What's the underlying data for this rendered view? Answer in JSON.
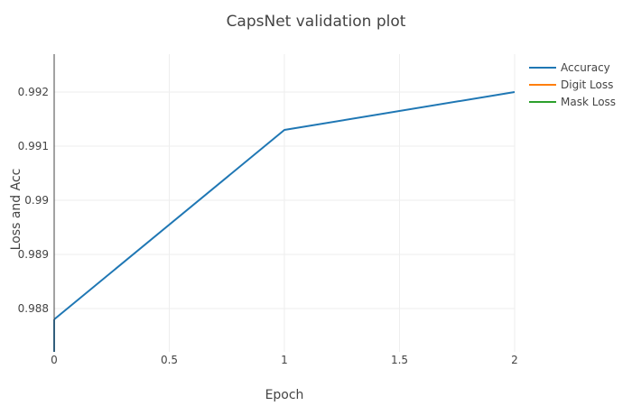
{
  "chart_data": {
    "type": "line",
    "title": "CapsNet validation plot",
    "xlabel": "Epoch",
    "ylabel": "Loss and Acc",
    "xlim": [
      0,
      2
    ],
    "ylim": [
      0.9872,
      0.9927
    ],
    "xticks": [
      0,
      0.5,
      1,
      1.5,
      2
    ],
    "xtick_labels": [
      "0",
      "0.5",
      "1",
      "1.5",
      "2"
    ],
    "yticks": [
      0.988,
      0.989,
      0.99,
      0.991,
      0.992
    ],
    "ytick_labels": [
      "0.988",
      "0.989",
      "0.99",
      "0.991",
      "0.992"
    ],
    "grid": true,
    "legend_position": "top-right",
    "series": [
      {
        "name": "Accuracy",
        "color": "#1f77b4",
        "x": [
          0,
          1,
          2
        ],
        "y": [
          0.9878,
          0.9913,
          0.992
        ]
      },
      {
        "name": "Digit Loss",
        "color": "#ff7f0e",
        "x": [],
        "y": []
      },
      {
        "name": "Mask Loss",
        "color": "#2ca02c",
        "x": [],
        "y": []
      }
    ]
  }
}
